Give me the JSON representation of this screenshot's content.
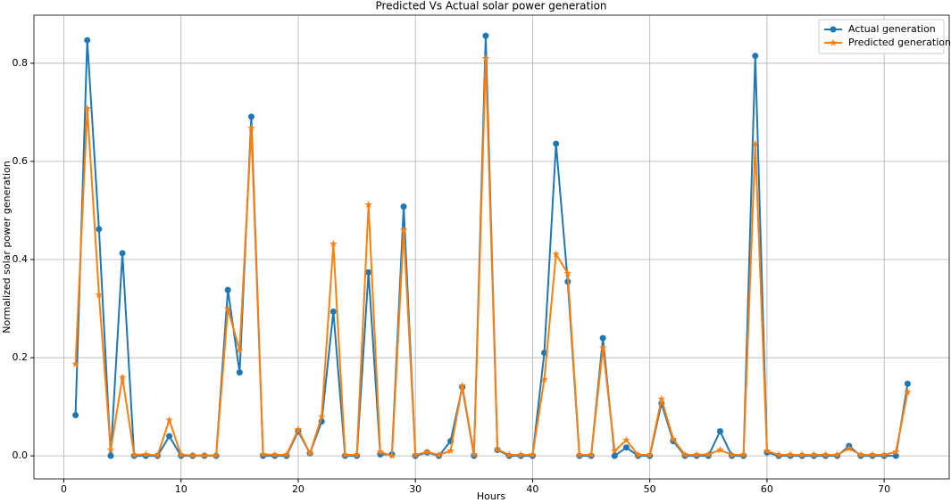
{
  "chart_data": {
    "type": "line",
    "title": "Predicted Vs Actual solar power generation",
    "x_label": "Hours",
    "y_label": "Normalized solar power generation",
    "x": [
      1,
      2,
      3,
      4,
      5,
      6,
      7,
      8,
      9,
      10,
      11,
      12,
      13,
      14,
      15,
      16,
      17,
      18,
      19,
      20,
      21,
      22,
      23,
      24,
      25,
      26,
      27,
      28,
      29,
      30,
      31,
      32,
      33,
      34,
      35,
      36,
      37,
      38,
      39,
      40,
      41,
      42,
      43,
      44,
      45,
      46,
      47,
      48,
      49,
      50,
      51,
      52,
      53,
      54,
      55,
      56,
      57,
      58,
      59,
      60,
      61,
      62,
      63,
      64,
      65,
      66,
      67,
      68,
      69,
      70,
      71,
      72
    ],
    "series": [
      {
        "name": "Actual generation",
        "color": "#1f77b4",
        "marker": "circle",
        "values": [
          0.083,
          0.847,
          0.462,
          0.0,
          0.413,
          0.0,
          0.0,
          0.0,
          0.04,
          0.0,
          0.0,
          0.0,
          0.0,
          0.338,
          0.17,
          0.691,
          0.0,
          0.0,
          0.0,
          0.05,
          0.005,
          0.07,
          0.294,
          0.0,
          0.0,
          0.374,
          0.003,
          0.003,
          0.508,
          0.0,
          0.007,
          0.0,
          0.03,
          0.14,
          0.0,
          0.856,
          0.012,
          0.0,
          0.0,
          0.0,
          0.21,
          0.636,
          0.355,
          0.0,
          0.0,
          0.24,
          0.0,
          0.017,
          0.0,
          0.0,
          0.107,
          0.03,
          0.0,
          0.0,
          0.0,
          0.05,
          0.0,
          0.0,
          0.815,
          0.007,
          0.0,
          0.0,
          0.0,
          0.0,
          0.0,
          0.0,
          0.02,
          0.0,
          0.0,
          0.0,
          0.0,
          0.147
        ]
      },
      {
        "name": "Predicted generation",
        "color": "#ff7f0e",
        "marker": "star",
        "values": [
          0.187,
          0.708,
          0.328,
          0.012,
          0.16,
          0.002,
          0.003,
          0.001,
          0.073,
          0.002,
          0.001,
          0.001,
          0.001,
          0.3,
          0.215,
          0.668,
          0.003,
          0.002,
          0.002,
          0.054,
          0.005,
          0.08,
          0.432,
          0.002,
          0.002,
          0.512,
          0.008,
          0.0,
          0.46,
          0.002,
          0.008,
          0.002,
          0.01,
          0.143,
          0.003,
          0.81,
          0.013,
          0.002,
          0.002,
          0.002,
          0.156,
          0.411,
          0.372,
          0.002,
          0.002,
          0.22,
          0.01,
          0.032,
          0.002,
          0.002,
          0.116,
          0.034,
          0.002,
          0.002,
          0.003,
          0.012,
          0.002,
          0.002,
          0.636,
          0.01,
          0.002,
          0.002,
          0.002,
          0.002,
          0.002,
          0.002,
          0.015,
          0.002,
          0.002,
          0.002,
          0.008,
          0.13
        ]
      }
    ],
    "xlim": [
      -2.55,
      75.55
    ],
    "ylim": [
      -0.047,
      0.898
    ],
    "xticks": [
      0,
      10,
      20,
      30,
      40,
      50,
      60,
      70
    ],
    "yticks": [
      {
        "value": 0,
        "label": "0.0"
      },
      0.2,
      0.4,
      0.6,
      0.8
    ],
    "grid": true,
    "legend": "upper right"
  }
}
